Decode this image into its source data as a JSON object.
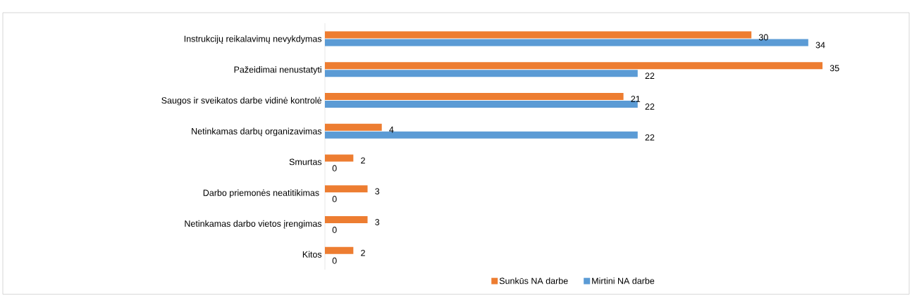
{
  "chart_data": {
    "type": "bar",
    "orientation": "horizontal",
    "categories": [
      "Instrukcijų reikalavimų nevykdymas",
      "Pažeidimai nenustatyti",
      "Saugos ir sveikatos darbe vidinė kontrolė",
      "Netinkamas darbų organizavimas",
      "Smurtas",
      "Darbo priemonės neatitikimas ",
      "Netinkamas darbo vietos įrengimas",
      "Kitos"
    ],
    "series": [
      {
        "name": "Sunkūs NA darbe",
        "color": "#ed7d31",
        "values": [
          30,
          35,
          21,
          4,
          2,
          3,
          3,
          2
        ]
      },
      {
        "name": "Mirtini NA darbe",
        "color": "#5b9bd5",
        "values": [
          34,
          22,
          22,
          22,
          0,
          0,
          0,
          0
        ]
      }
    ],
    "data_labels": true,
    "legend": "bottom"
  }
}
